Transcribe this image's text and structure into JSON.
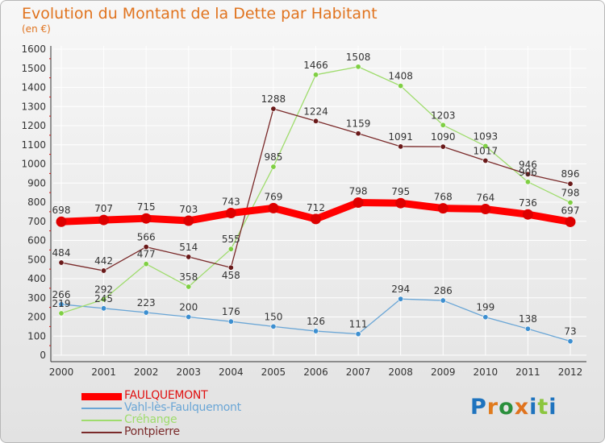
{
  "header": {
    "title": "Evolution du Montant de la Dette par Habitant",
    "subtitle": "(en €)"
  },
  "logo": {
    "text": "Proxiti",
    "colors": [
      "#1e73be",
      "#e07b1e",
      "#2a8f3c",
      "#e0731e",
      "#1e73be",
      "#8cc63f",
      "#1e73be"
    ]
  },
  "chart_data": {
    "type": "line",
    "title": "Evolution du Montant de la Dette par Habitant",
    "subtitle": "(en €)",
    "xlabel": "",
    "ylabel": "",
    "x": [
      2000,
      2001,
      2002,
      2003,
      2004,
      2005,
      2006,
      2007,
      2008,
      2009,
      2010,
      2011,
      2012
    ],
    "ylim": [
      0,
      1600
    ],
    "yticks": [
      0,
      100,
      200,
      300,
      400,
      500,
      600,
      700,
      800,
      900,
      1000,
      1100,
      1200,
      1300,
      1400,
      1500,
      1600
    ],
    "grid": true,
    "legend_position": "bottom-left",
    "series": [
      {
        "name": "FAULQUEMONT",
        "color": "#ff0000",
        "marker_color": "#dd0000",
        "emphasis": true,
        "values": [
          698,
          707,
          715,
          703,
          743,
          769,
          712,
          798,
          795,
          768,
          764,
          736,
          697
        ]
      },
      {
        "name": "Vahl-lès-Faulquemont",
        "color": "#6aa6d6",
        "marker_color": "#3d8fd0",
        "emphasis": false,
        "values": [
          266,
          245,
          223,
          200,
          176,
          150,
          126,
          111,
          294,
          286,
          199,
          138,
          73
        ]
      },
      {
        "name": "Créhange",
        "color": "#9fdc6d",
        "marker_color": "#7fcf43",
        "emphasis": false,
        "values": [
          219,
          292,
          477,
          358,
          555,
          985,
          1466,
          1508,
          1408,
          1203,
          1093,
          906,
          798
        ]
      },
      {
        "name": "Pontpierre",
        "color": "#7a2a2a",
        "marker_color": "#6a1a1a",
        "emphasis": false,
        "values": [
          484,
          442,
          566,
          514,
          458,
          1288,
          1224,
          1159,
          1091,
          1090,
          1017,
          946,
          896
        ]
      }
    ],
    "data_labels": [
      {
        "series": 0,
        "index": 0,
        "text": "698",
        "pos": "above"
      },
      {
        "series": 0,
        "index": 1,
        "text": "707",
        "pos": "above"
      },
      {
        "series": 0,
        "index": 2,
        "text": "715",
        "pos": "above"
      },
      {
        "series": 0,
        "index": 3,
        "text": "703",
        "pos": "above"
      },
      {
        "series": 0,
        "index": 4,
        "text": "743",
        "pos": "above"
      },
      {
        "series": 0,
        "index": 5,
        "text": "769",
        "pos": "above"
      },
      {
        "series": 0,
        "index": 6,
        "text": "712",
        "pos": "above"
      },
      {
        "series": 0,
        "index": 7,
        "text": "798",
        "pos": "above"
      },
      {
        "series": 0,
        "index": 8,
        "text": "795",
        "pos": "above"
      },
      {
        "series": 0,
        "index": 9,
        "text": "768",
        "pos": "above"
      },
      {
        "series": 0,
        "index": 10,
        "text": "764",
        "pos": "above"
      },
      {
        "series": 0,
        "index": 11,
        "text": "736",
        "pos": "above"
      },
      {
        "series": 0,
        "index": 12,
        "text": "697",
        "pos": "above"
      },
      {
        "series": 1,
        "index": 0,
        "text": "266",
        "pos": "above"
      },
      {
        "series": 1,
        "index": 1,
        "text": "245",
        "pos": "above"
      },
      {
        "series": 1,
        "index": 2,
        "text": "223",
        "pos": "above"
      },
      {
        "series": 1,
        "index": 3,
        "text": "200",
        "pos": "above"
      },
      {
        "series": 1,
        "index": 4,
        "text": "176",
        "pos": "above"
      },
      {
        "series": 1,
        "index": 5,
        "text": "150",
        "pos": "above"
      },
      {
        "series": 1,
        "index": 6,
        "text": "126",
        "pos": "above"
      },
      {
        "series": 1,
        "index": 7,
        "text": "111",
        "pos": "above"
      },
      {
        "series": 1,
        "index": 8,
        "text": "294",
        "pos": "above"
      },
      {
        "series": 1,
        "index": 9,
        "text": "286",
        "pos": "above"
      },
      {
        "series": 1,
        "index": 10,
        "text": "199",
        "pos": "above"
      },
      {
        "series": 1,
        "index": 11,
        "text": "138",
        "pos": "above"
      },
      {
        "series": 1,
        "index": 12,
        "text": "73",
        "pos": "above"
      },
      {
        "series": 2,
        "index": 0,
        "text": "219",
        "pos": "above"
      },
      {
        "series": 2,
        "index": 1,
        "text": "292",
        "pos": "above"
      },
      {
        "series": 2,
        "index": 2,
        "text": "477",
        "pos": "above"
      },
      {
        "series": 2,
        "index": 3,
        "text": "358",
        "pos": "above"
      },
      {
        "series": 2,
        "index": 4,
        "text": "555",
        "pos": "above"
      },
      {
        "series": 2,
        "index": 5,
        "text": "985",
        "pos": "above"
      },
      {
        "series": 2,
        "index": 6,
        "text": "1466",
        "pos": "above"
      },
      {
        "series": 2,
        "index": 7,
        "text": "1508",
        "pos": "above"
      },
      {
        "series": 2,
        "index": 8,
        "text": "1408",
        "pos": "above"
      },
      {
        "series": 2,
        "index": 9,
        "text": "1203",
        "pos": "above"
      },
      {
        "series": 2,
        "index": 10,
        "text": "1093",
        "pos": "above"
      },
      {
        "series": 2,
        "index": 11,
        "text": "906",
        "pos": "above"
      },
      {
        "series": 2,
        "index": 12,
        "text": "798",
        "pos": "above"
      },
      {
        "series": 3,
        "index": 0,
        "text": "484",
        "pos": "above"
      },
      {
        "series": 3,
        "index": 1,
        "text": "442",
        "pos": "above"
      },
      {
        "series": 3,
        "index": 2,
        "text": "566",
        "pos": "above"
      },
      {
        "series": 3,
        "index": 3,
        "text": "514",
        "pos": "above"
      },
      {
        "series": 3,
        "index": 4,
        "text": "458",
        "pos": "below"
      },
      {
        "series": 3,
        "index": 5,
        "text": "1288",
        "pos": "above"
      },
      {
        "series": 3,
        "index": 6,
        "text": "1224",
        "pos": "above"
      },
      {
        "series": 3,
        "index": 7,
        "text": "1159",
        "pos": "above"
      },
      {
        "series": 3,
        "index": 8,
        "text": "1091",
        "pos": "above"
      },
      {
        "series": 3,
        "index": 9,
        "text": "1090",
        "pos": "above"
      },
      {
        "series": 3,
        "index": 10,
        "text": "1017",
        "pos": "above"
      },
      {
        "series": 3,
        "index": 11,
        "text": "946",
        "pos": "above"
      },
      {
        "series": 3,
        "index": 12,
        "text": "896",
        "pos": "above"
      }
    ]
  }
}
